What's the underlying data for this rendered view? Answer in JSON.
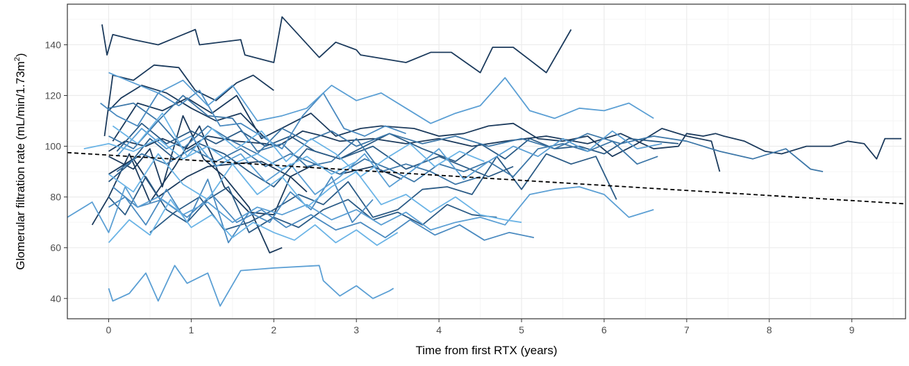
{
  "chart_data": {
    "type": "line",
    "title": "",
    "xlabel": "Time from first RTX (years)",
    "ylabel_main": "Glomerular filtration rate (mL/min/1.73m",
    "ylabel_sup": "2",
    "ylabel_close": ")",
    "xlim": [
      -0.5,
      9.65
    ],
    "ylim": [
      32,
      156
    ],
    "x_ticks": [
      0,
      1,
      2,
      3,
      4,
      5,
      6,
      7,
      8,
      9
    ],
    "y_ticks": [
      40,
      60,
      80,
      100,
      120,
      140
    ],
    "grid": true,
    "legend": "none",
    "colors": {
      "panel_border": "#333333",
      "grid_major": "#ebebeb",
      "grid_minor": "#f5f5f5",
      "trend": "#000000"
    },
    "trend_line": {
      "style": "dashed",
      "x": [
        -0.5,
        9.65
      ],
      "y": [
        97.5,
        77.3
      ]
    },
    "series": [
      {
        "color": "#1b3a5c",
        "x": [
          -0.08,
          -0.02,
          0.05,
          0.3,
          0.6,
          0.9,
          1.05,
          1.1,
          1.6,
          1.65,
          2.0,
          2.1,
          2.55,
          2.75,
          3.0,
          3.05,
          3.6,
          3.9,
          4.15,
          4.5,
          4.65,
          4.9,
          5.3,
          5.6
        ],
        "y": [
          148,
          136,
          144,
          142,
          140,
          144,
          146,
          140,
          142,
          136,
          133,
          151,
          135,
          141,
          138,
          136,
          133,
          137,
          137,
          129,
          139,
          139,
          129,
          146
        ]
      },
      {
        "color": "#1b3a5c",
        "x": [
          -0.05,
          0.05,
          0.3,
          0.55,
          0.85,
          1.05,
          1.3,
          1.55,
          1.75,
          2.0
        ],
        "y": [
          104,
          128,
          126,
          132,
          131,
          122,
          118,
          125,
          128,
          122
        ]
      },
      {
        "color": "#1b3a5c",
        "x": [
          0.0,
          0.2,
          0.45,
          0.65,
          0.95,
          1.2,
          1.55,
          1.9,
          2.05,
          2.2,
          2.35,
          2.6,
          2.8,
          3.2,
          3.6,
          4.0,
          4.4,
          4.8,
          5.3,
          5.8,
          6.2,
          6.6,
          6.9,
          7.0,
          7.2,
          7.35,
          7.45,
          7.7,
          7.95,
          8.15,
          8.45,
          8.75,
          8.95,
          9.15,
          9.3,
          9.4,
          9.6
        ],
        "y": [
          98,
          102,
          100,
          103,
          99,
          104,
          102,
          101,
          100,
          103,
          106,
          104,
          102,
          103,
          101,
          103,
          100,
          102,
          104,
          101,
          105,
          99,
          100,
          105,
          104,
          105,
          104,
          102,
          98,
          97,
          100,
          100,
          102,
          101,
          95,
          103,
          103
        ]
      },
      {
        "color": "#1b3a5c",
        "x": [
          -0.2,
          0.0,
          0.25,
          0.5,
          0.8,
          1.1,
          1.4,
          1.7,
          2.0,
          2.2,
          2.4
        ],
        "y": [
          69,
          80,
          97,
          78,
          92,
          108,
          84,
          74,
          73,
          88,
          82
        ]
      },
      {
        "color": "#1b3a5c",
        "x": [
          0.0,
          0.15,
          0.4,
          0.7,
          1.0,
          1.3,
          1.6,
          1.9
        ],
        "y": [
          114,
          119,
          124,
          121,
          115,
          110,
          113,
          103
        ]
      },
      {
        "color": "#1b3a5c",
        "x": [
          0.0,
          0.3,
          0.5,
          0.65,
          0.9,
          1.15,
          1.4,
          1.7,
          1.95,
          2.1
        ],
        "y": [
          96,
          91,
          99,
          84,
          112,
          95,
          88,
          76,
          58,
          60
        ]
      },
      {
        "color": "#1b3a5c",
        "x": [
          0.05,
          0.35,
          0.65,
          0.95,
          1.25,
          1.55,
          1.85,
          2.15,
          2.45,
          2.75,
          3.05,
          3.3,
          3.7,
          4.0,
          4.3,
          4.6,
          4.9,
          5.2,
          5.5,
          5.8,
          6.1,
          6.4,
          6.7,
          7.0,
          7.3,
          7.4
        ],
        "y": [
          102,
          117,
          114,
          119,
          113,
          120,
          103,
          108,
          113,
          104,
          107,
          108,
          107,
          104,
          105,
          108,
          109,
          103,
          102,
          104,
          96,
          101,
          107,
          104,
          102,
          90
        ]
      },
      {
        "color": "#1b3a5c",
        "x": [
          0.0,
          0.3,
          0.6,
          0.95,
          1.2,
          1.5,
          1.85,
          2.2,
          2.5,
          2.8,
          3.2,
          3.55
        ],
        "y": [
          89,
          95,
          80,
          88,
          92,
          93,
          94,
          88,
          93,
          89,
          92,
          87
        ]
      },
      {
        "color": "#2b5b86",
        "x": [
          0.0,
          0.25,
          0.5,
          0.8,
          1.1,
          1.4,
          1.7,
          2.0,
          2.4,
          2.8,
          3.2,
          3.6,
          4.0,
          4.3,
          4.6,
          4.9
        ],
        "y": [
          86,
          93,
          103,
          95,
          101,
          97,
          90,
          84,
          99,
          95,
          100,
          91,
          96,
          92,
          88,
          92
        ]
      },
      {
        "color": "#2b5b86",
        "x": [
          0.1,
          0.4,
          0.7,
          1.0,
          1.3,
          1.6,
          1.9,
          2.2,
          2.5,
          2.8,
          3.1,
          3.4,
          3.8,
          4.2,
          4.5,
          4.8,
          5.1,
          5.4,
          5.7,
          6.0,
          6.3,
          6.6,
          6.9
        ],
        "y": [
          98,
          109,
          101,
          106,
          101,
          106,
          100,
          104,
          98,
          95,
          100,
          105,
          99,
          94,
          101,
          95,
          103,
          99,
          100,
          97,
          103,
          102,
          101
        ]
      },
      {
        "color": "#2b5b86",
        "x": [
          0.0,
          0.2,
          0.45,
          0.7,
          0.95,
          1.2,
          1.45,
          1.7,
          2.0,
          2.3,
          2.6,
          2.9,
          3.2,
          3.5,
          3.8,
          4.1,
          4.4,
          4.7
        ],
        "y": [
          80,
          73,
          88,
          75,
          70,
          79,
          84,
          66,
          72,
          68,
          75,
          79,
          71,
          74,
          69,
          77,
          73,
          72
        ]
      },
      {
        "color": "#2b5b86",
        "x": [
          0.5,
          0.8,
          1.1,
          1.4,
          1.7,
          2.0,
          2.3,
          2.6,
          2.9,
          3.2,
          3.5,
          3.8,
          4.1,
          4.4,
          4.7,
          5.0,
          5.3,
          5.6,
          5.9,
          6.15
        ],
        "y": [
          66,
          74,
          80,
          67,
          70,
          75,
          81,
          77,
          86,
          72,
          75,
          83,
          84,
          81,
          96,
          83,
          97,
          93,
          96,
          79
        ]
      },
      {
        "color": "#3d77a8",
        "x": [
          0.0,
          0.3,
          0.6,
          0.9,
          1.2,
          1.5,
          1.8,
          2.1,
          2.4,
          2.7,
          3.0,
          3.3,
          3.6,
          3.9,
          4.2,
          4.5
        ],
        "y": [
          115,
          117,
          110,
          120,
          112,
          111,
          98,
          101,
          92,
          94,
          103,
          90,
          93,
          90,
          85,
          88
        ]
      },
      {
        "color": "#3d77a8",
        "x": [
          0.1,
          0.4,
          0.7,
          1.0,
          1.3,
          1.6,
          1.9,
          2.2,
          2.5,
          2.8,
          3.1,
          3.4,
          3.7,
          4.0,
          4.3,
          4.6,
          4.9,
          5.2,
          5.5,
          5.8,
          6.1,
          6.4,
          6.65
        ],
        "y": [
          90,
          97,
          93,
          99,
          94,
          99,
          92,
          97,
          93,
          89,
          95,
          91,
          86,
          93,
          90,
          94,
          88,
          99,
          101,
          98,
          102,
          93,
          96
        ]
      },
      {
        "color": "#3d77a8",
        "x": [
          0.0,
          0.3,
          0.6,
          0.9,
          1.2,
          1.5,
          1.8,
          2.1,
          2.4,
          2.7,
          3.0,
          3.4,
          3.8,
          4.2,
          4.6,
          5.0,
          5.4,
          5.8,
          6.2,
          6.6,
          7.0,
          7.4,
          7.8,
          8.2,
          8.5,
          8.65
        ],
        "y": [
          104,
          99,
          110,
          99,
          108,
          102,
          97,
          107,
          102,
          106,
          100,
          105,
          101,
          104,
          100,
          103,
          99,
          105,
          101,
          104,
          102,
          98,
          95,
          99,
          91,
          90
        ]
      },
      {
        "color": "#4a8ac0",
        "x": [
          -0.1,
          0.1,
          0.35,
          0.6,
          0.85,
          1.1,
          1.35,
          1.6,
          1.85,
          2.1,
          2.35,
          2.6,
          2.85,
          3.1,
          3.35,
          3.6
        ],
        "y": [
          117,
          112,
          108,
          121,
          116,
          122,
          108,
          109,
          104,
          99,
          112,
          121,
          107,
          104,
          108,
          105
        ]
      },
      {
        "color": "#4a8ac0",
        "x": [
          0.0,
          0.2,
          0.45,
          0.7,
          0.95,
          1.2,
          1.45,
          1.7,
          1.95,
          2.2,
          2.45,
          2.7,
          2.95,
          3.2
        ],
        "y": [
          76,
          80,
          69,
          83,
          70,
          87,
          62,
          74,
          70,
          82,
          75,
          88,
          70,
          79
        ]
      },
      {
        "color": "#4a8ac0",
        "x": [
          0.05,
          0.35,
          0.65,
          0.95,
          1.25,
          1.55,
          1.85,
          2.15,
          2.45,
          2.75,
          3.05,
          3.35,
          3.65,
          3.95,
          4.25,
          4.55,
          4.85,
          5.15
        ],
        "y": [
          84,
          76,
          79,
          72,
          81,
          70,
          75,
          68,
          73,
          67,
          70,
          64,
          71,
          65,
          69,
          63,
          66,
          64
        ]
      },
      {
        "color": "#5b9fd4",
        "x": [
          -0.5,
          -0.2,
          0.0,
          0.2,
          0.35,
          0.6,
          0.9,
          1.2,
          1.5,
          1.8,
          2.1,
          2.4,
          2.7,
          3.0,
          3.3,
          3.6,
          3.9,
          4.2,
          4.5,
          4.8,
          5.1,
          5.4,
          5.7,
          6.0,
          6.3,
          6.6
        ],
        "y": [
          72,
          78,
          66,
          84,
          76,
          80,
          73,
          78,
          70,
          76,
          73,
          77,
          71,
          75,
          69,
          74,
          67,
          70,
          72,
          69,
          81,
          83,
          84,
          81,
          72,
          75
        ]
      },
      {
        "color": "#5b9fd4",
        "x": [
          0.0,
          0.05,
          0.25,
          0.45,
          0.6,
          0.8,
          0.95,
          1.2,
          1.35,
          1.6,
          2.0,
          2.55,
          2.6,
          2.8,
          3.0,
          3.2,
          3.4,
          3.45
        ],
        "y": [
          44,
          39,
          42,
          50,
          39,
          53,
          46,
          50,
          37,
          51,
          52,
          53,
          47,
          41,
          45,
          40,
          43,
          44
        ]
      },
      {
        "color": "#5b9fd4",
        "x": [
          0.0,
          0.3,
          0.6,
          0.9,
          1.2,
          1.5,
          1.8,
          2.1,
          2.4,
          2.7,
          3.0,
          3.3,
          3.6,
          3.9,
          4.2,
          4.5,
          4.8,
          5.1,
          5.4,
          5.7,
          6.0,
          6.3,
          6.6
        ],
        "y": [
          129,
          125,
          121,
          126,
          116,
          124,
          110,
          112,
          115,
          124,
          118,
          121,
          115,
          109,
          113,
          116,
          127,
          114,
          111,
          115,
          114,
          117,
          111
        ]
      },
      {
        "color": "#5b9fd4",
        "x": [
          0.1,
          0.4,
          0.7,
          1.0,
          1.3,
          1.6,
          1.9,
          2.2,
          2.5,
          2.8,
          3.1,
          3.4,
          3.7,
          4.0,
          4.3,
          4.6,
          4.9,
          5.2,
          5.5,
          5.8,
          6.1,
          6.4,
          6.7
        ],
        "y": [
          96,
          107,
          99,
          104,
          92,
          97,
          86,
          93,
          81,
          88,
          97,
          84,
          91,
          99,
          87,
          94,
          100,
          96,
          103,
          98,
          106,
          99,
          101
        ]
      },
      {
        "color": "#6bb4e6",
        "x": [
          0.0,
          0.25,
          0.5,
          0.75,
          1.0,
          1.25,
          1.5,
          1.75,
          2.0,
          2.25,
          2.5,
          2.75,
          3.0,
          3.25,
          3.5
        ],
        "y": [
          62,
          71,
          65,
          79,
          68,
          73,
          64,
          70,
          66,
          63,
          69,
          62,
          67,
          61,
          66
        ]
      },
      {
        "color": "#6bb4e6",
        "x": [
          0.0,
          0.3,
          0.6,
          0.9,
          1.2,
          1.5,
          1.8,
          2.1,
          2.4,
          2.7,
          3.0,
          3.3,
          3.6,
          3.9,
          4.2,
          4.5,
          4.8,
          5.0
        ],
        "y": [
          89,
          82,
          97,
          85,
          79,
          93,
          81,
          88,
          76,
          84,
          90,
          77,
          81,
          74,
          80,
          73,
          71,
          70
        ]
      },
      {
        "color": "#6bb4e6",
        "x": [
          0.05,
          0.35,
          0.65,
          0.95,
          1.25,
          1.55,
          1.85,
          2.15,
          2.45,
          2.75,
          3.05,
          3.35,
          3.65,
          3.95,
          4.25,
          4.55
        ],
        "y": [
          108,
          101,
          113,
          96,
          107,
          99,
          106,
          94,
          103,
          97,
          88,
          95,
          101,
          92,
          98,
          94
        ]
      },
      {
        "color": "#6bb4e6",
        "x": [
          -0.3,
          0.0,
          0.3,
          0.6,
          0.9,
          1.2,
          1.5,
          1.8,
          2.1,
          2.4,
          2.7,
          3.0
        ],
        "y": [
          99,
          101,
          98,
          103,
          95,
          100,
          93,
          97,
          91,
          96,
          89,
          94
        ]
      }
    ]
  }
}
